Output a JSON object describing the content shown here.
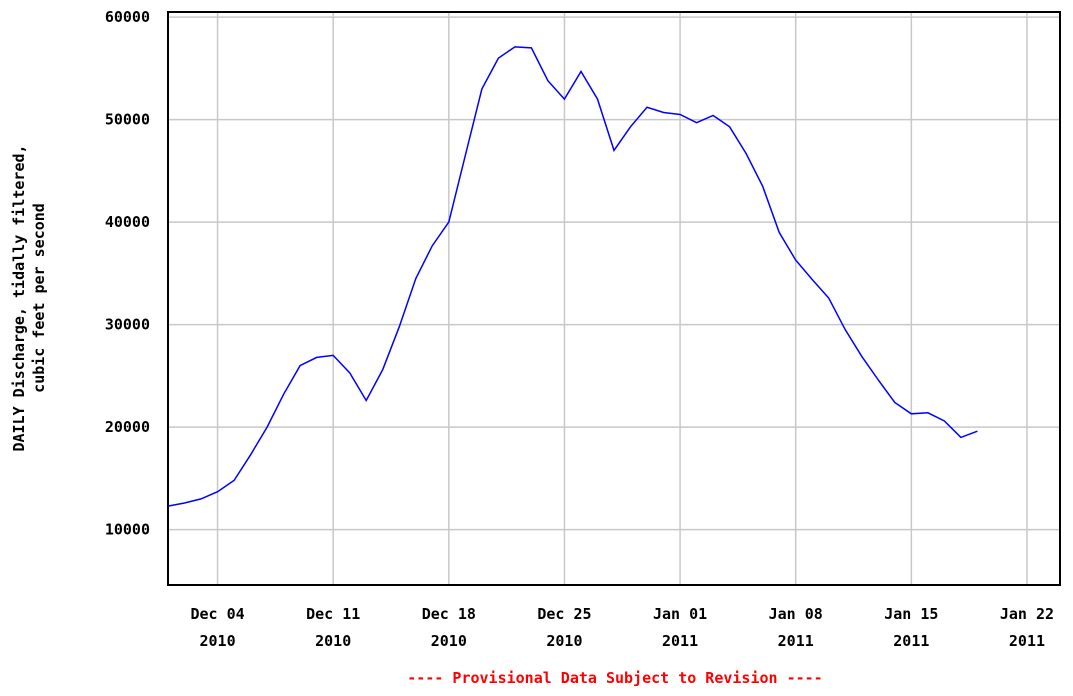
{
  "chart_data": {
    "type": "line",
    "y_label": [
      "DAILY Discharge, tidally filtered,",
      "cubic feet per second"
    ],
    "footer": "---- Provisional Data Subject to Revision ----",
    "x": [
      "2010-12-01",
      "2010-12-02",
      "2010-12-03",
      "2010-12-04",
      "2010-12-05",
      "2010-12-06",
      "2010-12-07",
      "2010-12-08",
      "2010-12-09",
      "2010-12-10",
      "2010-12-11",
      "2010-12-12",
      "2010-12-13",
      "2010-12-14",
      "2010-12-15",
      "2010-12-16",
      "2010-12-17",
      "2010-12-18",
      "2010-12-19",
      "2010-12-20",
      "2010-12-21",
      "2010-12-22",
      "2010-12-23",
      "2010-12-24",
      "2010-12-25",
      "2010-12-26",
      "2010-12-27",
      "2010-12-28",
      "2010-12-29",
      "2010-12-30",
      "2010-12-31",
      "2011-01-01",
      "2011-01-02",
      "2011-01-03",
      "2011-01-04",
      "2011-01-05",
      "2011-01-06",
      "2011-01-07",
      "2011-01-08",
      "2011-01-09",
      "2011-01-10",
      "2011-01-11",
      "2011-01-12",
      "2011-01-13",
      "2011-01-14",
      "2011-01-15",
      "2011-01-16",
      "2011-01-17",
      "2011-01-18",
      "2011-01-19"
    ],
    "series": [
      {
        "color": "#0000ff",
        "values": [
          12300,
          12600,
          13000,
          13700,
          14800,
          17300,
          20000,
          23200,
          26000,
          26800,
          27000,
          25300,
          22600,
          25600,
          29800,
          34500,
          37700,
          40000,
          46500,
          53000,
          56000,
          57100,
          57000,
          53800,
          52000,
          54700,
          52000,
          47000,
          49300,
          51200,
          50700,
          50500,
          49700,
          50400,
          49300,
          46700,
          43500,
          39000,
          36300,
          34400,
          32600,
          29500,
          26900,
          24600,
          22400,
          21300,
          21400,
          20600,
          19000,
          19600
        ]
      }
    ],
    "xlim": [
      "2010-12-01",
      "2011-01-24"
    ],
    "xticks": [
      {
        "value": "2010-12-04",
        "label": [
          "Dec 04",
          "2010"
        ]
      },
      {
        "value": "2010-12-11",
        "label": [
          "Dec 11",
          "2010"
        ]
      },
      {
        "value": "2010-12-18",
        "label": [
          "Dec 18",
          "2010"
        ]
      },
      {
        "value": "2010-12-25",
        "label": [
          "Dec 25",
          "2010"
        ]
      },
      {
        "value": "2011-01-01",
        "label": [
          "Jan 01",
          "2011"
        ]
      },
      {
        "value": "2011-01-08",
        "label": [
          "Jan 08",
          "2011"
        ]
      },
      {
        "value": "2011-01-15",
        "label": [
          "Jan 15",
          "2011"
        ]
      },
      {
        "value": "2011-01-22",
        "label": [
          "Jan 22",
          "2011"
        ]
      }
    ],
    "ylim": [
      4600,
      60500
    ],
    "yticks": [
      10000,
      20000,
      30000,
      40000,
      50000,
      60000
    ],
    "grid": true
  }
}
